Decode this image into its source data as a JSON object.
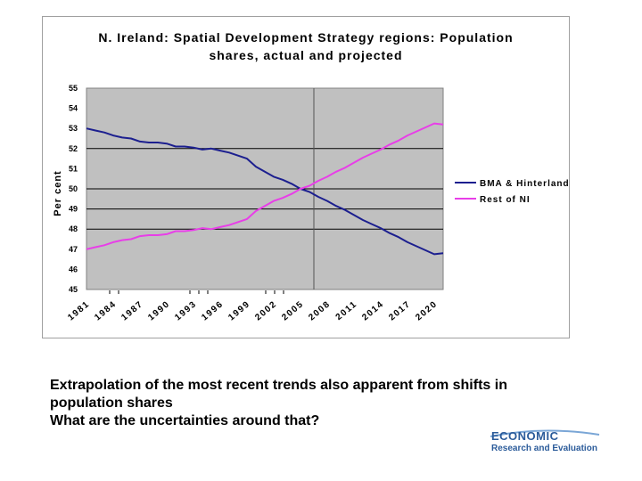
{
  "chart_data": {
    "type": "line",
    "title_lines": [
      "N. Ireland: Spatial Development Strategy regions: Population",
      "shares, actual and projected"
    ],
    "xlabel": "",
    "ylabel": "Per cent",
    "ylim": [
      45,
      55
    ],
    "yticks": [
      45,
      46,
      47,
      48,
      49,
      50,
      51,
      52,
      53,
      54,
      55
    ],
    "xlim": [
      1981,
      2021
    ],
    "xticks": [
      "1981",
      "1984",
      "1987",
      "1990",
      "1993",
      "1996",
      "1999",
      "2002",
      "2005",
      "2008",
      "2011",
      "2014",
      "2017",
      "2020"
    ],
    "horizontal_gridlines": [
      48,
      49,
      50,
      52
    ],
    "vertical_marker_x": 2006.5,
    "grid": true,
    "legend_position": "right",
    "series": [
      {
        "name": "BMA & Hinterland",
        "color": "#1c1f8f",
        "x": [
          1981,
          1982,
          1983,
          1984,
          1985,
          1986,
          1987,
          1988,
          1989,
          1990,
          1991,
          1992,
          1993,
          1994,
          1995,
          1996,
          1997,
          1998,
          1999,
          2000,
          2001,
          2002,
          2003,
          2004,
          2005,
          2006,
          2007,
          2008,
          2009,
          2010,
          2011,
          2012,
          2013,
          2014,
          2015,
          2016,
          2017,
          2018,
          2019,
          2020,
          2021
        ],
        "values": [
          53.0,
          52.9,
          52.8,
          52.65,
          52.55,
          52.5,
          52.35,
          52.3,
          52.3,
          52.25,
          52.1,
          52.1,
          52.05,
          51.95,
          52.0,
          51.9,
          51.8,
          51.65,
          51.5,
          51.1,
          50.85,
          50.6,
          50.45,
          50.25,
          50.0,
          49.85,
          49.6,
          49.4,
          49.15,
          48.95,
          48.7,
          48.45,
          48.25,
          48.05,
          47.8,
          47.6,
          47.35,
          47.15,
          46.95,
          46.75,
          46.8
        ]
      },
      {
        "name": "Rest of NI",
        "color": "#e83ee8",
        "x": [
          1981,
          1982,
          1983,
          1984,
          1985,
          1986,
          1987,
          1988,
          1989,
          1990,
          1991,
          1992,
          1993,
          1994,
          1995,
          1996,
          1997,
          1998,
          1999,
          2000,
          2001,
          2002,
          2003,
          2004,
          2005,
          2006,
          2007,
          2008,
          2009,
          2010,
          2011,
          2012,
          2013,
          2014,
          2015,
          2016,
          2017,
          2018,
          2019,
          2020,
          2021
        ],
        "values": [
          47.0,
          47.1,
          47.2,
          47.35,
          47.45,
          47.5,
          47.65,
          47.7,
          47.7,
          47.75,
          47.9,
          47.9,
          47.95,
          48.05,
          48.0,
          48.1,
          48.2,
          48.35,
          48.5,
          48.9,
          49.15,
          49.4,
          49.55,
          49.75,
          50.0,
          50.15,
          50.4,
          50.6,
          50.85,
          51.05,
          51.3,
          51.55,
          51.75,
          51.95,
          52.2,
          52.4,
          52.65,
          52.85,
          53.05,
          53.25,
          53.2
        ]
      }
    ]
  },
  "caption": {
    "line1": "Extrapolation of the most recent trends also apparent from shifts in",
    "line2": "population shares",
    "line3": "What are the uncertainties around that?"
  },
  "logo": {
    "line1": "ECONOMIC",
    "line2": "Research and Evaluation",
    "color": "#2b5b9a"
  },
  "colors": {
    "plot_background": "#c0c0c0",
    "gridline": "#000000"
  }
}
